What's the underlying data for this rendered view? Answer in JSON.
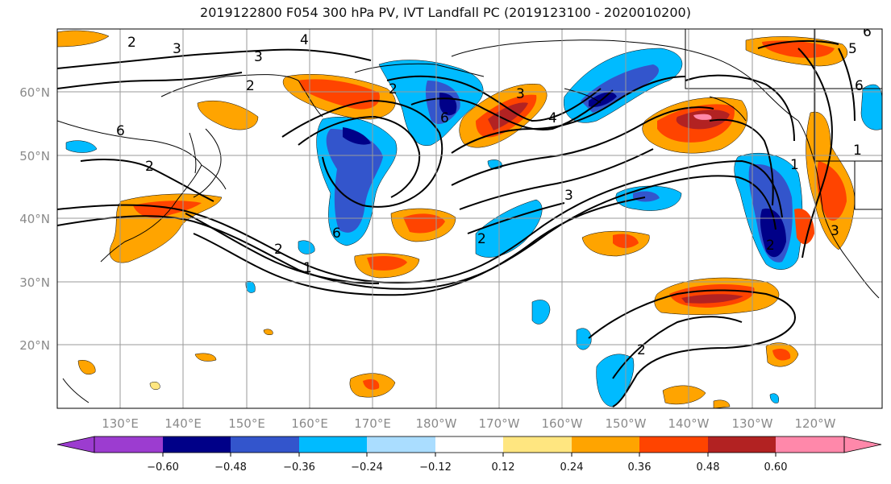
{
  "title": "2019122800 F054 300 hPa PV, IVT Landfall PC (2019123100 - 2020010200)",
  "colors": {
    "fill": [
      "#9c3cd0",
      "#000088",
      "#3355cc",
      "#00bbff",
      "#aaddff",
      "#ffffff",
      "#ffe680",
      "#ffa400",
      "#ff4400",
      "#b22222",
      "#ff88aa"
    ],
    "contour": "#000000",
    "grid": "#9a9a9a"
  },
  "map": {
    "lat_labels": [
      "60°N",
      "50°N",
      "40°N",
      "30°N",
      "20°N"
    ],
    "lon_labels": [
      "130°E",
      "140°E",
      "150°E",
      "160°E",
      "170°E",
      "180°W",
      "170°W",
      "160°W",
      "150°W",
      "140°W",
      "130°W",
      "120°W"
    ],
    "contour_labels": [
      "2",
      "3",
      "4",
      "3",
      "2",
      "6",
      "2",
      "1",
      "3",
      "6",
      "2",
      "6",
      "2",
      "3",
      "4",
      "2",
      "1",
      "6",
      "3",
      "5",
      "6",
      "1",
      "2",
      "2"
    ]
  },
  "colorbar": {
    "ticks": [
      "−0.60",
      "−0.48",
      "−0.36",
      "−0.24",
      "−0.12",
      "0.12",
      "0.24",
      "0.36",
      "0.48",
      "0.60"
    ]
  }
}
